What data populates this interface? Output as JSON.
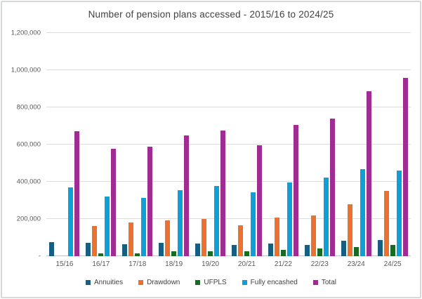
{
  "chart_data": {
    "type": "bar",
    "title": "Number of pension plans accessed - 2015/16 to 2024/25",
    "categories": [
      "15/16",
      "16/17",
      "17/18",
      "18/19",
      "19/20",
      "20/21",
      "21/22",
      "22/23",
      "23/24",
      "24/25"
    ],
    "series": [
      {
        "name": "Annuities",
        "color": "#156082",
        "values": [
          75000,
          72000,
          65000,
          72000,
          68000,
          60000,
          68000,
          59000,
          82000,
          88000
        ]
      },
      {
        "name": "Drawdown",
        "color": "#E97132",
        "values": [
          0,
          164000,
          181000,
          191000,
          200000,
          166000,
          206000,
          218000,
          279000,
          351000
        ]
      },
      {
        "name": "UFPLS",
        "color": "#196B24",
        "values": [
          0,
          15000,
          16000,
          25000,
          28000,
          26000,
          33000,
          41000,
          49000,
          62000
        ]
      },
      {
        "name": "Fully encashed",
        "color": "#0F9ED5",
        "values": [
          370000,
          320000,
          312000,
          355000,
          376000,
          342000,
          395000,
          421000,
          468000,
          462000
        ]
      },
      {
        "name": "Total",
        "color": "#A02B93",
        "values": [
          670000,
          579000,
          590000,
          649000,
          674000,
          596000,
          706000,
          740000,
          885000,
          960000
        ]
      }
    ],
    "ylim": [
      0,
      1200000
    ],
    "y_ticks": [
      {
        "value": 0,
        "label": "-"
      },
      {
        "value": 200000,
        "label": "200,000"
      },
      {
        "value": 400000,
        "label": "400,000"
      },
      {
        "value": 600000,
        "label": "600,000"
      },
      {
        "value": 800000,
        "label": "800,000"
      },
      {
        "value": 1000000,
        "label": "1,000,000"
      },
      {
        "value": 1200000,
        "label": "1,200,000"
      }
    ],
    "grid": true,
    "legend_position": "bottom",
    "colors": {
      "title_text": "#404040",
      "axis_text": "#595959",
      "gridline": "#dcdcdc",
      "frame_border": "#d6d9dc",
      "background": "#ffffff"
    }
  }
}
